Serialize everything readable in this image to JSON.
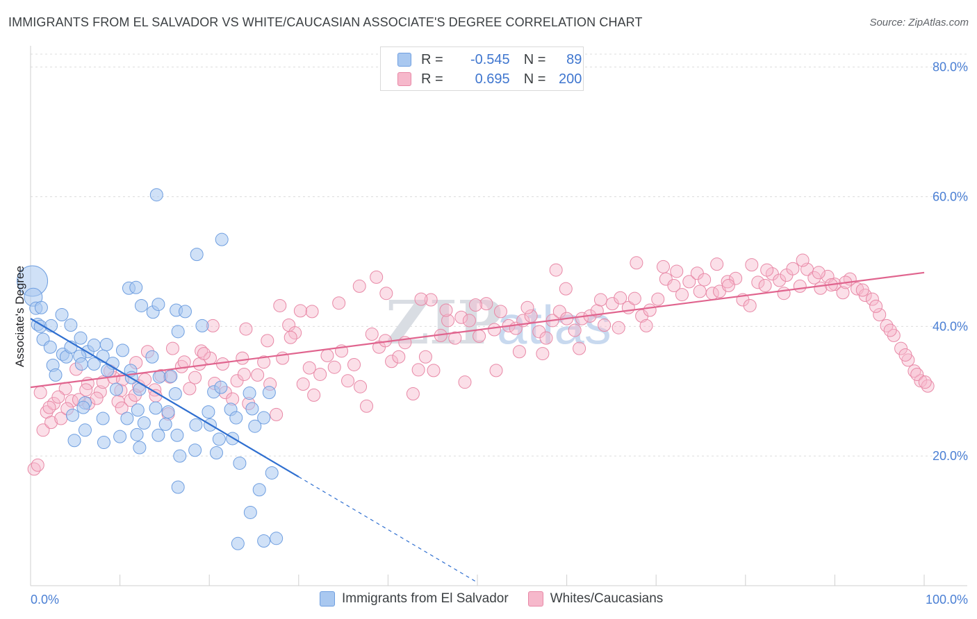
{
  "header": {
    "title": "IMMIGRANTS FROM EL SALVADOR VS WHITE/CAUCASIAN ASSOCIATE'S DEGREE CORRELATION CHART",
    "source": "Source: ZipAtlas.com"
  },
  "legend": {
    "rows": [
      {
        "r_label": "R =",
        "r_value": "-0.545",
        "n_label": "N =",
        "n_value": "89"
      },
      {
        "r_label": "R =",
        "r_value": "0.695",
        "n_label": "N =",
        "n_value": "200"
      }
    ]
  },
  "watermark": {
    "zip": "ZIP",
    "atlas": "atlas"
  },
  "colors": {
    "blue_fill": "#a9c8f0",
    "blue_stroke": "#6e9ee0",
    "blue_line": "#2f6fd0",
    "pink_fill": "#f6b8cb",
    "pink_stroke": "#e888a6",
    "pink_line": "#e0648e",
    "tick_text": "#4a7fd4"
  },
  "chart_data": {
    "type": "scatter",
    "title": "IMMIGRANTS FROM EL SALVADOR VS WHITE/CAUCASIAN ASSOCIATE'S DEGREE CORRELATION CHART",
    "xlabel": "",
    "ylabel": "Associate's Degree",
    "xlim": [
      0,
      100
    ],
    "ylim": [
      0,
      82
    ],
    "x_tick_labels": [
      "0.0%",
      "100.0%"
    ],
    "y_ticks": [
      20,
      40,
      60,
      80
    ],
    "y_tick_labels": [
      "20.0%",
      "40.0%",
      "60.0%",
      "80.0%"
    ],
    "grid": true,
    "legend_position": "top-center",
    "series": [
      {
        "name": "Immigrants from El Salvador",
        "color": "#a9c8f0",
        "trend": {
          "x0": 0,
          "y0": 41.2,
          "x1": 30,
          "y1": 16.8,
          "dashed_to_x": 50,
          "dashed_to_y": 0.5
        },
        "points": [
          [
            0.2,
            47
          ],
          [
            0.3,
            44.5
          ],
          [
            0.6,
            42.8
          ],
          [
            1.2,
            42.9
          ],
          [
            0.8,
            40.3
          ],
          [
            1.1,
            40
          ],
          [
            2.3,
            40.1
          ],
          [
            3.5,
            41.8
          ],
          [
            4.5,
            40.2
          ],
          [
            5.6,
            38.2
          ],
          [
            1.4,
            38
          ],
          [
            2.2,
            36.8
          ],
          [
            3.6,
            35.7
          ],
          [
            4,
            35.3
          ],
          [
            4.5,
            36.8
          ],
          [
            6.4,
            36.1
          ],
          [
            7.1,
            37.1
          ],
          [
            8.5,
            37.2
          ],
          [
            8.1,
            35.4
          ],
          [
            5.5,
            35.4
          ],
          [
            10.3,
            36.3
          ],
          [
            11.2,
            33.2
          ],
          [
            13.6,
            35.3
          ],
          [
            2.5,
            34
          ],
          [
            5.7,
            34.2
          ],
          [
            7.1,
            34.2
          ],
          [
            9.2,
            34.3
          ],
          [
            8.6,
            33.2
          ],
          [
            2.8,
            32.5
          ],
          [
            11.3,
            32.1
          ],
          [
            14.4,
            32.2
          ],
          [
            15.7,
            32.3
          ],
          [
            9.6,
            30.3
          ],
          [
            12.2,
            30.3
          ],
          [
            16.2,
            29.6
          ],
          [
            20.5,
            29.9
          ],
          [
            21.3,
            30.6
          ],
          [
            24.5,
            29.7
          ],
          [
            26.7,
            29.8
          ],
          [
            6.1,
            28.2
          ],
          [
            5.9,
            27.5
          ],
          [
            12,
            27.1
          ],
          [
            14,
            27.4
          ],
          [
            15.4,
            26.8
          ],
          [
            19.9,
            26.8
          ],
          [
            22.4,
            27.2
          ],
          [
            24.8,
            27.3
          ],
          [
            23,
            25.9
          ],
          [
            26.1,
            25.9
          ],
          [
            4.7,
            26.3
          ],
          [
            8.1,
            25.8
          ],
          [
            10.8,
            25.8
          ],
          [
            12.7,
            25.1
          ],
          [
            15.1,
            24.9
          ],
          [
            18.5,
            24.8
          ],
          [
            20.1,
            24.8
          ],
          [
            25.1,
            24.6
          ],
          [
            6.1,
            24
          ],
          [
            10,
            23
          ],
          [
            11.9,
            23.3
          ],
          [
            14.3,
            23.2
          ],
          [
            16.4,
            23.2
          ],
          [
            21.1,
            22.6
          ],
          [
            22.6,
            22.7
          ],
          [
            4.9,
            22.4
          ],
          [
            8.2,
            22.1
          ],
          [
            12.2,
            21.3
          ],
          [
            16.7,
            20
          ],
          [
            18.4,
            20.9
          ],
          [
            20.8,
            20.5
          ],
          [
            23.4,
            18.9
          ],
          [
            27,
            17.4
          ],
          [
            25.6,
            14.8
          ],
          [
            16.5,
            15.2
          ],
          [
            24.6,
            11.3
          ],
          [
            27.5,
            7.3
          ],
          [
            23.2,
            6.5
          ],
          [
            26.1,
            6.9
          ],
          [
            11,
            45.9
          ],
          [
            12.4,
            43.2
          ],
          [
            13.7,
            42.2
          ],
          [
            14.3,
            43.4
          ],
          [
            16.3,
            42.5
          ],
          [
            17.3,
            42.3
          ],
          [
            18.6,
            51.1
          ],
          [
            21.4,
            53.4
          ],
          [
            14.1,
            60.3
          ],
          [
            11.8,
            46
          ],
          [
            16.5,
            39.2
          ],
          [
            19.2,
            40.1
          ]
        ]
      },
      {
        "name": "Whites/Caucasians",
        "color": "#f6b8cb",
        "trend": {
          "x0": 0,
          "y0": 30.6,
          "x1": 100,
          "y1": 48.3
        },
        "points": [
          [
            0.4,
            18
          ],
          [
            0.8,
            18.6
          ],
          [
            1.4,
            24
          ],
          [
            1.8,
            26.8
          ],
          [
            2.3,
            25.2
          ],
          [
            2.6,
            28.1
          ],
          [
            3.4,
            25.8
          ],
          [
            3.9,
            30.4
          ],
          [
            4.6,
            28.5
          ],
          [
            5.1,
            33.4
          ],
          [
            6.5,
            28.1
          ],
          [
            6.4,
            31.2
          ],
          [
            7.8,
            29.9
          ],
          [
            8.1,
            31.4
          ],
          [
            9.3,
            32.1
          ],
          [
            10.1,
            30.1
          ],
          [
            9.8,
            28.4
          ],
          [
            10.2,
            27.4
          ],
          [
            11.2,
            28.6
          ],
          [
            11.7,
            29.4
          ],
          [
            12.1,
            30.8
          ],
          [
            12.8,
            31.8
          ],
          [
            13.9,
            30.2
          ],
          [
            14,
            29.3
          ],
          [
            14.6,
            32.4
          ],
          [
            15.4,
            26.5
          ],
          [
            15.9,
            36.6
          ],
          [
            16.9,
            33.8
          ],
          [
            17.8,
            30.4
          ],
          [
            18.4,
            32.1
          ],
          [
            18.9,
            34.2
          ],
          [
            19.1,
            36.2
          ],
          [
            20.1,
            35.1
          ],
          [
            20.6,
            31.2
          ],
          [
            21.8,
            29.8
          ],
          [
            22.6,
            28.8
          ],
          [
            23.1,
            31.6
          ],
          [
            23.9,
            32.6
          ],
          [
            24.4,
            28.1
          ],
          [
            25.4,
            32.5
          ],
          [
            26.1,
            34.5
          ],
          [
            26.8,
            31.1
          ],
          [
            27.5,
            26.4
          ],
          [
            28.2,
            35.1
          ],
          [
            28.9,
            40.2
          ],
          [
            29.6,
            39
          ],
          [
            30.5,
            31.1
          ],
          [
            31.2,
            33.6
          ],
          [
            31.7,
            29.4
          ],
          [
            32.4,
            32.6
          ],
          [
            33.2,
            35.5
          ],
          [
            34,
            33.7
          ],
          [
            34.8,
            36.2
          ],
          [
            35.5,
            31.6
          ],
          [
            36.2,
            34.1
          ],
          [
            36.9,
            30.7
          ],
          [
            37.6,
            27.7
          ],
          [
            38.2,
            38.8
          ],
          [
            39,
            36.8
          ],
          [
            39.7,
            37.8
          ],
          [
            40.4,
            34.6
          ],
          [
            41.2,
            35.3
          ],
          [
            41.9,
            37.5
          ],
          [
            42.8,
            29.6
          ],
          [
            43.4,
            33.3
          ],
          [
            44.2,
            35.3
          ],
          [
            45.1,
            33.2
          ],
          [
            45.9,
            38.6
          ],
          [
            46.7,
            40.9
          ],
          [
            47.5,
            38.2
          ],
          [
            48.2,
            41.4
          ],
          [
            49.1,
            40.9
          ],
          [
            50.2,
            38.5
          ],
          [
            51,
            43.5
          ],
          [
            51.9,
            39.5
          ],
          [
            52.6,
            42.3
          ],
          [
            53.5,
            40.1
          ],
          [
            54.3,
            39.7
          ],
          [
            55.1,
            40.9
          ],
          [
            56,
            41.6
          ],
          [
            56.9,
            39.2
          ],
          [
            57.7,
            38.2
          ],
          [
            58.4,
            40.9
          ],
          [
            59.2,
            42.3
          ],
          [
            60,
            41.2
          ],
          [
            60.9,
            39.4
          ],
          [
            61.7,
            41.2
          ],
          [
            62.6,
            41.6
          ],
          [
            63.4,
            42.4
          ],
          [
            64.2,
            40.2
          ],
          [
            65.1,
            43.5
          ],
          [
            66,
            44.4
          ],
          [
            66.9,
            42.9
          ],
          [
            67.6,
            44.3
          ],
          [
            68.4,
            41.6
          ],
          [
            69.3,
            42.5
          ],
          [
            70.2,
            44.2
          ],
          [
            71.1,
            47.3
          ],
          [
            72,
            46.3
          ],
          [
            72.9,
            44.9
          ],
          [
            73.7,
            46.9
          ],
          [
            74.6,
            48.2
          ],
          [
            75.4,
            47.2
          ],
          [
            76.3,
            45.1
          ],
          [
            77.1,
            45.4
          ],
          [
            78,
            46.9
          ],
          [
            78.9,
            47.4
          ],
          [
            79.7,
            44.1
          ],
          [
            80.5,
            43.2
          ],
          [
            81.4,
            46.8
          ],
          [
            82.2,
            46.3
          ],
          [
            83,
            48.1
          ],
          [
            83.8,
            47.1
          ],
          [
            84.6,
            47.9
          ],
          [
            85.3,
            48.9
          ],
          [
            86.1,
            46.2
          ],
          [
            86.9,
            48.8
          ],
          [
            87.7,
            47.5
          ],
          [
            88.4,
            45.9
          ],
          [
            89.2,
            47.7
          ],
          [
            90,
            46.5
          ],
          [
            90.9,
            45.2
          ],
          [
            91.7,
            47.3
          ],
          [
            92.5,
            45.8
          ],
          [
            93.4,
            44.8
          ],
          [
            94.2,
            44.2
          ],
          [
            95,
            41.8
          ],
          [
            95.8,
            40.1
          ],
          [
            96.6,
            38.6
          ],
          [
            97.4,
            36.6
          ],
          [
            98.2,
            34.8
          ],
          [
            98.9,
            33.1
          ],
          [
            99.6,
            31.6
          ],
          [
            100.4,
            30.8
          ],
          [
            48.6,
            31.4
          ],
          [
            52.1,
            33.2
          ],
          [
            54.7,
            36.1
          ],
          [
            57.3,
            35.8
          ],
          [
            61.4,
            36.6
          ],
          [
            65.8,
            39.8
          ],
          [
            68.9,
            40.1
          ],
          [
            44.8,
            44.1
          ],
          [
            46.5,
            42.5
          ],
          [
            49.8,
            43.3
          ],
          [
            39.8,
            45.1
          ],
          [
            36.8,
            46.2
          ],
          [
            43.7,
            44.2
          ],
          [
            55.6,
            42.9
          ],
          [
            58.8,
            48.7
          ],
          [
            59.9,
            45.8
          ],
          [
            63.8,
            44.1
          ],
          [
            67.8,
            49.8
          ],
          [
            70.8,
            49.2
          ],
          [
            72.3,
            48.5
          ],
          [
            74.9,
            45.4
          ],
          [
            76.8,
            49.6
          ],
          [
            78.1,
            46.3
          ],
          [
            80.7,
            49.5
          ],
          [
            82.4,
            48.7
          ],
          [
            84.3,
            45.1
          ],
          [
            86.4,
            50.2
          ],
          [
            88.2,
            48.3
          ],
          [
            89.6,
            46.4
          ],
          [
            91.2,
            46.8
          ],
          [
            93.1,
            45.6
          ],
          [
            94.6,
            43.1
          ],
          [
            96.2,
            39.4
          ],
          [
            97.9,
            35.6
          ],
          [
            99.2,
            32.6
          ],
          [
            100.1,
            31.4
          ],
          [
            38.7,
            47.6
          ],
          [
            34.5,
            43.6
          ],
          [
            31.5,
            42.3
          ],
          [
            29.1,
            38.3
          ],
          [
            26.5,
            37.8
          ],
          [
            23.7,
            35.1
          ],
          [
            21.5,
            34.2
          ],
          [
            19.4,
            35.8
          ],
          [
            17.2,
            34.5
          ],
          [
            15.6,
            32.2
          ],
          [
            13.1,
            36.1
          ],
          [
            11.8,
            34.4
          ],
          [
            10.3,
            31.8
          ],
          [
            8.9,
            33.1
          ],
          [
            7.4,
            28.9
          ],
          [
            6.2,
            30.2
          ],
          [
            5.4,
            28.7
          ],
          [
            4.1,
            27.3
          ],
          [
            3.1,
            29.1
          ],
          [
            2.1,
            27.5
          ],
          [
            1.1,
            29.8
          ],
          [
            20.4,
            40.1
          ],
          [
            24.1,
            39.6
          ],
          [
            27.9,
            43.2
          ],
          [
            30.2,
            42.4
          ]
        ]
      }
    ]
  },
  "bottom_legend": {
    "items": [
      "Immigrants from El Salvador",
      "Whites/Caucasians"
    ]
  }
}
